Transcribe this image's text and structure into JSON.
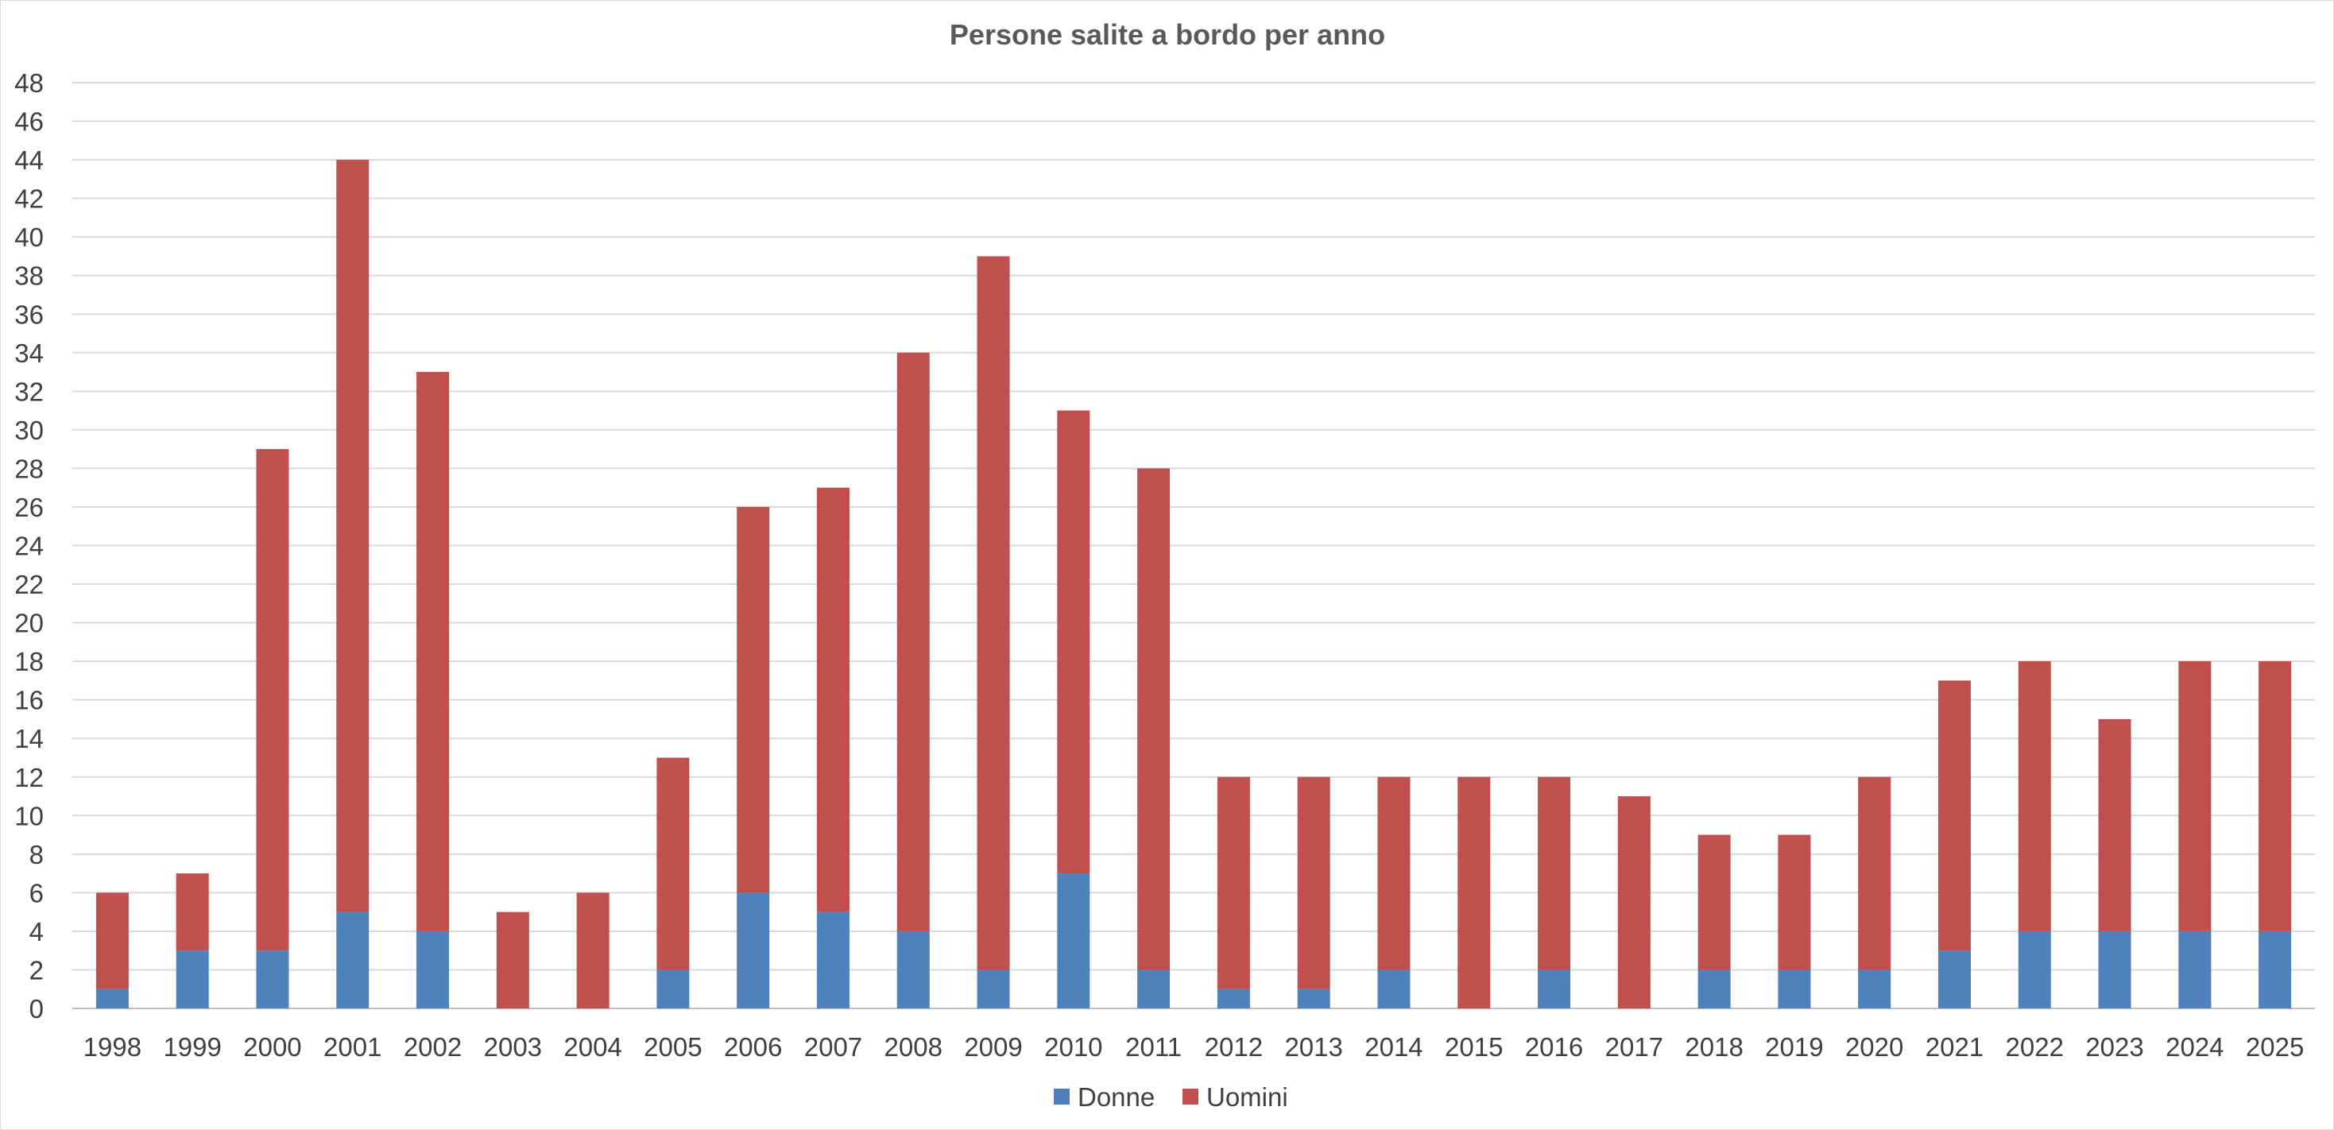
{
  "chart_data": {
    "type": "bar",
    "stacked": true,
    "title": "Persone salite a bordo per anno",
    "xlabel": "",
    "ylabel": "",
    "ylim": [
      0,
      48
    ],
    "y_tick_step": 2,
    "grid": true,
    "legend_position": "bottom",
    "categories": [
      "1998",
      "1999",
      "2000",
      "2001",
      "2002",
      "2003",
      "2004",
      "2005",
      "2006",
      "2007",
      "2008",
      "2009",
      "2010",
      "2011",
      "2012",
      "2013",
      "2014",
      "2015",
      "2016",
      "2017",
      "2018",
      "2019",
      "2020",
      "2021",
      "2022",
      "2023",
      "2024",
      "2025"
    ],
    "series": [
      {
        "name": "Donne",
        "color": "#4f81bd",
        "values": [
          1,
          3,
          3,
          5,
          4,
          0,
          0,
          2,
          6,
          5,
          4,
          2,
          7,
          2,
          1,
          1,
          2,
          0,
          2,
          0,
          2,
          2,
          2,
          3,
          4,
          4,
          4,
          4
        ]
      },
      {
        "name": "Uomini",
        "color": "#c0504d",
        "values": [
          5,
          4,
          26,
          39,
          29,
          5,
          6,
          11,
          20,
          22,
          30,
          37,
          24,
          26,
          11,
          11,
          10,
          12,
          10,
          11,
          7,
          7,
          10,
          14,
          14,
          11,
          14,
          14
        ]
      }
    ]
  }
}
